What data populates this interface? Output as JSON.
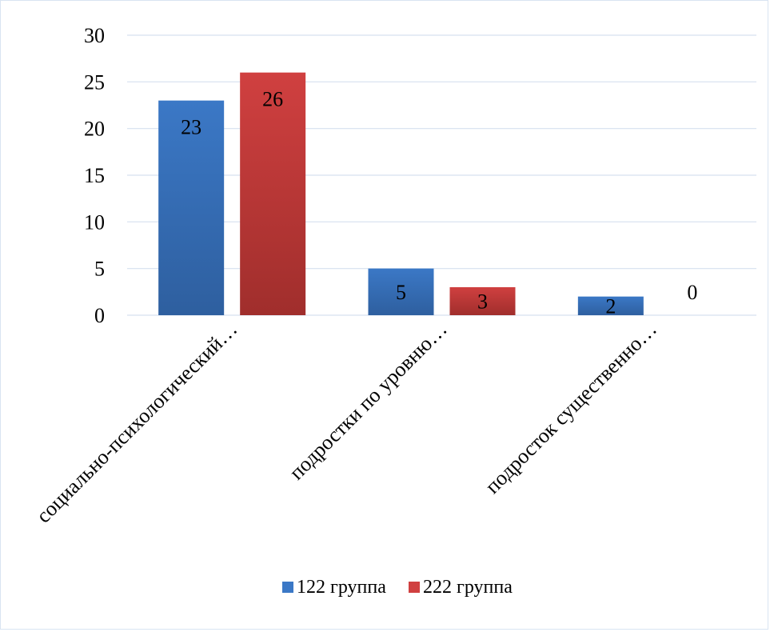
{
  "chart_data": {
    "type": "bar",
    "categories": [
      "социально-психологический…",
      "подростки по уровню…",
      "подросток существенно…"
    ],
    "series": [
      {
        "name": "122 группа",
        "values": [
          23,
          5,
          2
        ],
        "color": "#3b78c6",
        "color_dark": "#2e5f9f"
      },
      {
        "name": "222 группа",
        "values": [
          26,
          3,
          0
        ],
        "color": "#d04040",
        "color_dark": "#a02e2c"
      }
    ],
    "title": "",
    "xlabel": "",
    "ylabel": "",
    "ylim": [
      0,
      30
    ],
    "yticks": [
      0,
      5,
      10,
      15,
      20,
      25,
      30
    ],
    "grid": true,
    "legend_position": "bottom",
    "data_labels": true,
    "gridline_color": "#d6e1ef"
  }
}
